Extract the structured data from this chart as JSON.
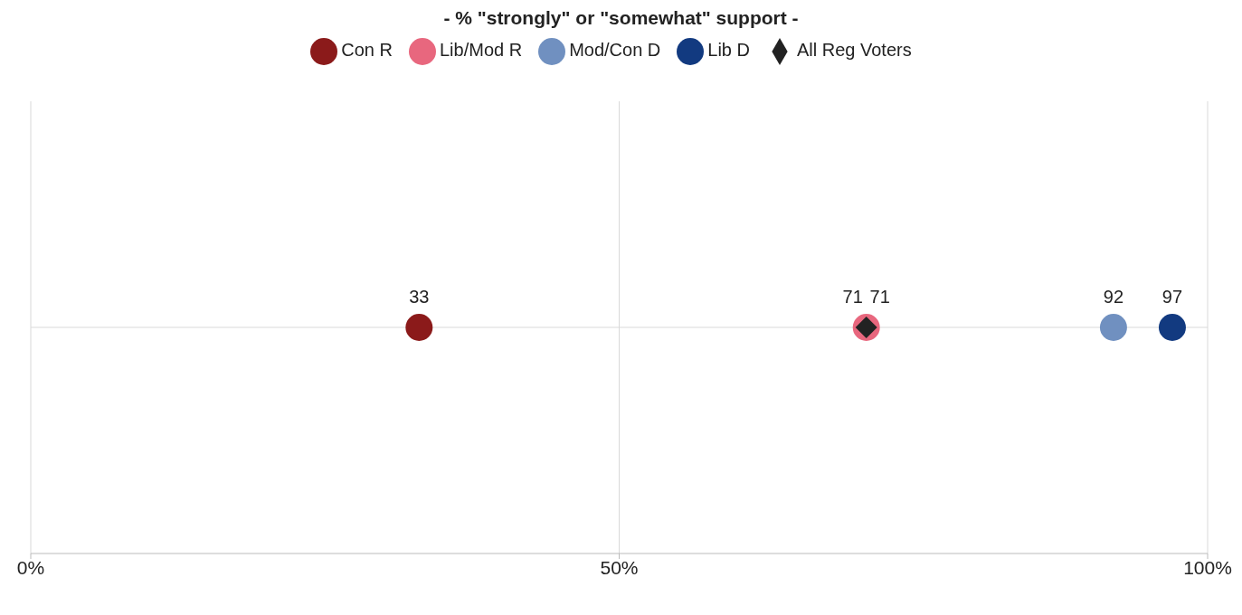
{
  "chart_data": {
    "type": "scatter",
    "title": "- % \"strongly\" or \"somewhat\" support -",
    "orientation": "horizontal",
    "categories": [
      null
    ],
    "series": [
      {
        "name": "Con R",
        "color": "#8b1a1a",
        "values": [
          33
        ],
        "marker": "circle"
      },
      {
        "name": "Lib/Mod R",
        "color": "#e8677e",
        "values": [
          71
        ],
        "marker": "circle"
      },
      {
        "name": "Mod/Con D",
        "color": "#7090c0",
        "values": [
          92
        ],
        "marker": "circle"
      },
      {
        "name": "Lib D",
        "color": "#123a80",
        "values": [
          97
        ],
        "marker": "circle"
      },
      {
        "name": "All Reg Voters",
        "color": "#222222",
        "values": [
          71
        ],
        "marker": "diamond"
      }
    ],
    "xlim": [
      0,
      100
    ],
    "xticks": [
      {
        "value": 0,
        "label": "0%"
      },
      {
        "value": 50,
        "label": "50%"
      },
      {
        "value": 100,
        "label": "100%"
      }
    ],
    "grid": true,
    "legend": "top",
    "data_labels": true
  }
}
